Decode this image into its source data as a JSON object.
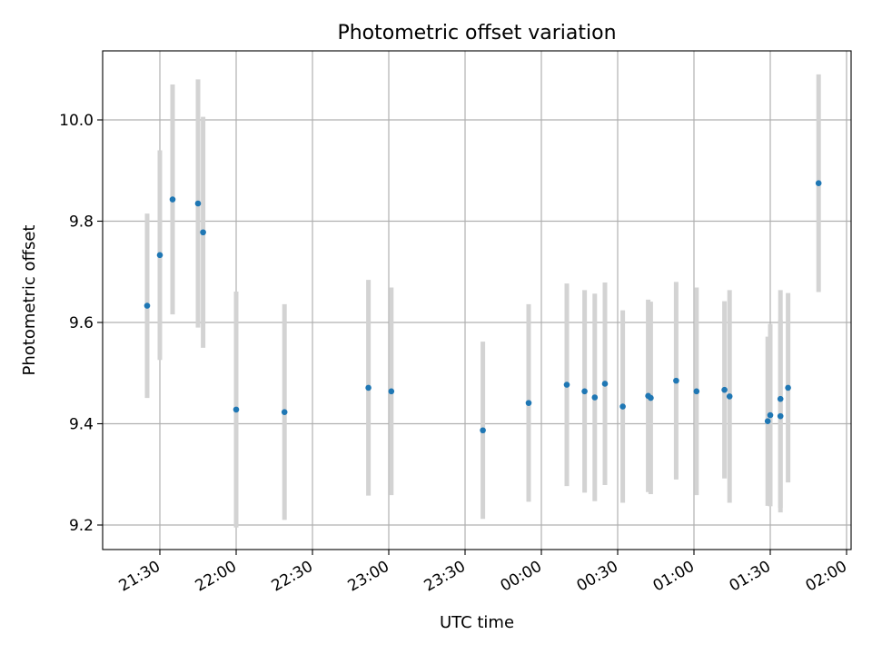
{
  "chart_data": {
    "type": "scatter",
    "title": "Photometric offset variation",
    "xlabel": "UTC time",
    "ylabel": "Photometric offset",
    "x_tick_labels": [
      "21:30",
      "22:00",
      "22:30",
      "23:00",
      "23:30",
      "00:00",
      "00:30",
      "01:00",
      "01:30",
      "02:00"
    ],
    "y_tick_labels": [
      "9.2",
      "9.4",
      "9.6",
      "9.8",
      "10.0"
    ],
    "y_ticks": [
      9.2,
      9.4,
      9.6,
      9.8,
      10.0
    ],
    "ylim": [
      9.15,
      10.14
    ],
    "grid": true,
    "errorbar_color": "#d3d3d3",
    "marker_color": "#1f77b4",
    "series": [
      {
        "points": [
          {
            "x": "21:25",
            "y": 9.633,
            "err": 0.182
          },
          {
            "x": "21:30",
            "y": 9.733,
            "err": 0.207
          },
          {
            "x": "21:35",
            "y": 9.843,
            "err": 0.227
          },
          {
            "x": "21:45",
            "y": 9.835,
            "err": 0.245
          },
          {
            "x": "21:47",
            "y": 9.778,
            "err": 0.228
          },
          {
            "x": "22:00",
            "y": 9.428,
            "err": 0.233
          },
          {
            "x": "22:19",
            "y": 9.423,
            "err": 0.213
          },
          {
            "x": "22:52",
            "y": 9.471,
            "err": 0.213
          },
          {
            "x": "23:01",
            "y": 9.464,
            "err": 0.205
          },
          {
            "x": "23:37",
            "y": 9.387,
            "err": 0.175
          },
          {
            "x": "23:55",
            "y": 9.441,
            "err": 0.195
          },
          {
            "x": "00:10",
            "y": 9.477,
            "err": 0.2
          },
          {
            "x": "00:17",
            "y": 9.464,
            "err": 0.2
          },
          {
            "x": "00:21",
            "y": 9.452,
            "err": 0.205
          },
          {
            "x": "00:25",
            "y": 9.479,
            "err": 0.2
          },
          {
            "x": "00:32",
            "y": 9.434,
            "err": 0.19
          },
          {
            "x": "00:42",
            "y": 9.455,
            "err": 0.19
          },
          {
            "x": "00:43",
            "y": 9.451,
            "err": 0.19
          },
          {
            "x": "00:53",
            "y": 9.485,
            "err": 0.195
          },
          {
            "x": "01:01",
            "y": 9.464,
            "err": 0.205
          },
          {
            "x": "01:12",
            "y": 9.467,
            "err": 0.175
          },
          {
            "x": "01:14",
            "y": 9.454,
            "err": 0.21
          },
          {
            "x": "01:29",
            "y": 9.405,
            "err": 0.167
          },
          {
            "x": "01:30",
            "y": 9.417,
            "err": 0.18
          },
          {
            "x": "01:34",
            "y": 9.415,
            "err": 0.19
          },
          {
            "x": "01:34",
            "y": 9.449,
            "err": 0.215
          },
          {
            "x": "01:37",
            "y": 9.471,
            "err": 0.187
          },
          {
            "x": "01:49",
            "y": 9.875,
            "err": 0.215
          }
        ]
      }
    ]
  }
}
